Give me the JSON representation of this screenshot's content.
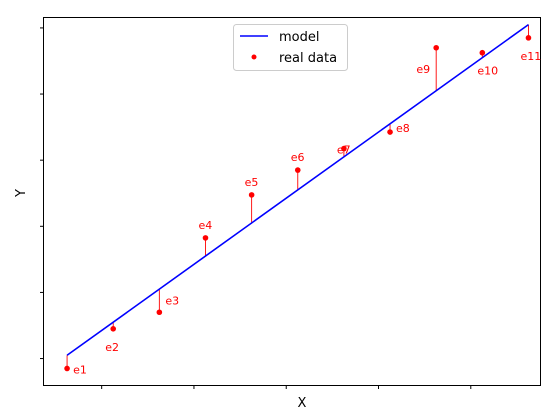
{
  "chart_data": {
    "type": "scatter",
    "xlabel": "X",
    "ylabel": "Y",
    "xlim": [
      -0.25,
      10.5
    ],
    "ylim": [
      -0.3,
      10.8
    ],
    "x_ticks": [
      1,
      3,
      5,
      7,
      9
    ],
    "y_ticks": [
      0.5,
      2.5,
      4.5,
      6.5,
      8.5,
      10.5
    ],
    "tick_labels_visible": false,
    "grid": false,
    "legend_position": "top-center",
    "model": {
      "name": "model",
      "color": "#0000ff",
      "points": [
        {
          "x": 0.25,
          "y": 0.6
        },
        {
          "x": 10.25,
          "y": 10.6
        }
      ]
    },
    "real_data": {
      "name": "real data",
      "color": "#ff0000",
      "points": [
        {
          "x": 0.25,
          "y": 0.2,
          "label": "e1"
        },
        {
          "x": 1.25,
          "y": 1.4,
          "label": "e2"
        },
        {
          "x": 2.25,
          "y": 1.9,
          "label": "e3"
        },
        {
          "x": 3.25,
          "y": 4.15,
          "label": "e4"
        },
        {
          "x": 4.25,
          "y": 5.45,
          "label": "e5"
        },
        {
          "x": 5.25,
          "y": 6.2,
          "label": "e6"
        },
        {
          "x": 6.25,
          "y": 6.85,
          "label": "e7"
        },
        {
          "x": 7.25,
          "y": 7.35,
          "label": "e8"
        },
        {
          "x": 8.25,
          "y": 9.9,
          "label": "e9"
        },
        {
          "x": 9.25,
          "y": 9.75,
          "label": "e10"
        },
        {
          "x": 10.25,
          "y": 10.2,
          "label": "e11"
        }
      ]
    }
  }
}
